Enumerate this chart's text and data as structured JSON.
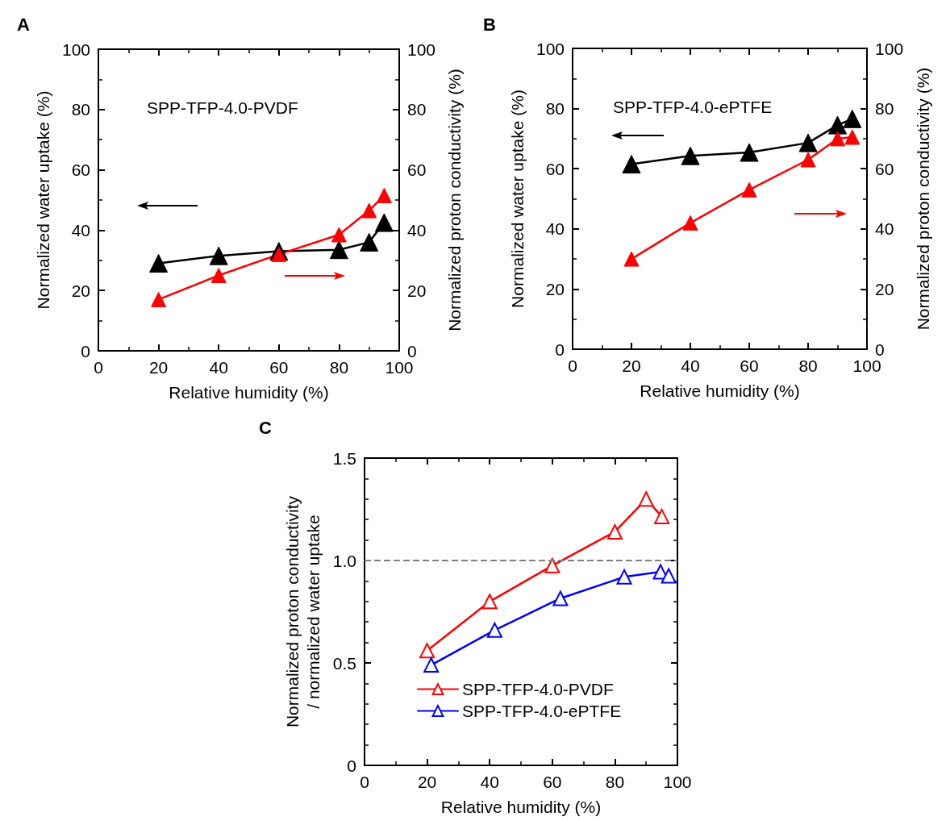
{
  "chart_data": [
    {
      "type": "line",
      "title": "A",
      "xlabel": "Relative humidity (%)",
      "ylabel": "Normalized water uptake (%)",
      "y2label": "Normalized proton conductivity (%)",
      "annotations": [
        "SPP-TFP-4.0-PVDF"
      ],
      "x": [
        20,
        40,
        60,
        80,
        90,
        95
      ],
      "xlim": [
        0,
        100
      ],
      "xticks": [
        0,
        20,
        40,
        60,
        80,
        100
      ],
      "ylim": [
        0,
        100
      ],
      "yticks": [
        0,
        20,
        40,
        60,
        80,
        100
      ],
      "y2lim": [
        0,
        100
      ],
      "y2ticks": [
        0,
        20,
        40,
        60,
        80,
        100
      ],
      "marker": "triangle",
      "legend": false,
      "grid": false,
      "series": [
        {
          "color": "#000000",
          "values": [
            29,
            31.5,
            33,
            33.5,
            36,
            42.5
          ]
        },
        {
          "color": "#ff0000",
          "axis": "y2",
          "values": [
            17,
            25,
            32,
            38.5,
            46.5,
            51.5
          ]
        }
      ]
    },
    {
      "type": "line",
      "title": "B",
      "xlabel": "Relative humidity (%)",
      "ylabel": "Normalized water uptake (%)",
      "y2label": "Normalized proton conductivity (%)",
      "annotations": [
        "SPP-TFP-4.0-ePTFE"
      ],
      "x": [
        20,
        40,
        60,
        80,
        90,
        95
      ],
      "xlim": [
        0,
        100
      ],
      "xticks": [
        0,
        20,
        40,
        60,
        80,
        100
      ],
      "ylim": [
        0,
        100
      ],
      "yticks": [
        0,
        20,
        40,
        60,
        80,
        100
      ],
      "y2lim": [
        0,
        100
      ],
      "y2ticks": [
        0,
        20,
        40,
        60,
        80,
        100
      ],
      "marker": "triangle",
      "legend": false,
      "grid": false,
      "series": [
        {
          "color": "#000000",
          "values": [
            61.5,
            64.3,
            65.4,
            68.6,
            74.5,
            76.6
          ]
        },
        {
          "color": "#ff0000",
          "axis": "y2",
          "values": [
            30,
            42,
            53,
            63,
            70,
            70.5
          ]
        }
      ]
    },
    {
      "type": "line",
      "title": "C",
      "xlabel": "Relative humidity (%)",
      "ylabel": "Normalized proton conductivity\n/ normalized water uptake",
      "xlim": [
        0,
        100
      ],
      "xticks": [
        0,
        20,
        40,
        60,
        80,
        100
      ],
      "ylim": [
        0,
        1.5
      ],
      "yticks": [
        0,
        0.5,
        {
          "value": 1,
          "label": "1.0"
        },
        1.5
      ],
      "marker": "triangle",
      "legend": "bottom",
      "grid": false,
      "ref_lines": [
        {
          "axis": "y",
          "value": 1,
          "color": "#808080",
          "line_style": "dashed"
        }
      ],
      "series": [
        {
          "name": "SPP-TFP-4.0-PVDF",
          "color": "#ff0000",
          "x": [
            20,
            40,
            60,
            80,
            90,
            95
          ],
          "values": [
            0.56,
            0.8,
            0.975,
            1.14,
            1.3,
            1.215
          ]
        },
        {
          "name": "SPP-TFP-4.0-ePTFE",
          "color": "#0000ff",
          "x": [
            21.3,
            41.6,
            62.6,
            83,
            94.6,
            97.2
          ],
          "values": [
            0.49,
            0.66,
            0.815,
            0.92,
            0.945,
            0.925
          ]
        }
      ]
    }
  ]
}
